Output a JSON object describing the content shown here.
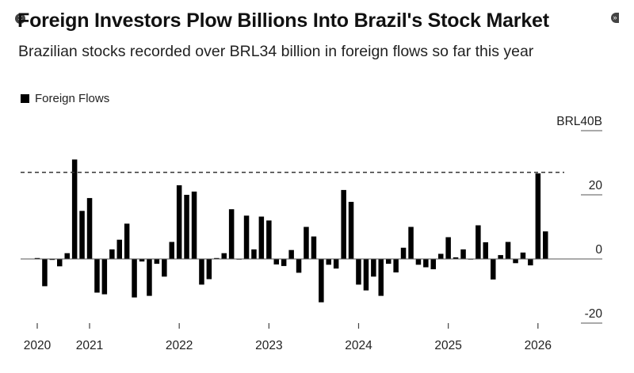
{
  "header": {
    "title": "Foreign Investors Plow Billions Into Brazil's Stock Market",
    "subtitle": "Brazilian stocks recorded over BRL34 billion in foreign flows so far this year",
    "close_icon": "close-icon",
    "expand_icon": "double-chevron-right-icon"
  },
  "chart_data": {
    "type": "bar",
    "title": "Foreign Investors Plow Billions Into Brazil's Stock Market",
    "subtitle": "Brazilian stocks recorded over BRL34 billion in foreign flows so far this year",
    "xlabel": "",
    "ylabel": "",
    "y_unit_label": "BRL40B",
    "ylim": [
      -20,
      40
    ],
    "yticks": [
      {
        "value": 40,
        "label": "BRL40B"
      },
      {
        "value": 20,
        "label": "20"
      },
      {
        "value": 0,
        "label": "0"
      },
      {
        "value": -20,
        "label": "-20"
      }
    ],
    "xticks": [
      {
        "index": 0,
        "label": "2020"
      },
      {
        "index": 7,
        "label": "2021"
      },
      {
        "index": 19,
        "label": "2022"
      },
      {
        "index": 31,
        "label": "2023"
      },
      {
        "index": 43,
        "label": "2024"
      },
      {
        "index": 55,
        "label": "2025"
      },
      {
        "index": 67,
        "label": "2026"
      }
    ],
    "reference_line": {
      "value": 27,
      "style": "dashed"
    },
    "legend": {
      "position": "top-left",
      "entries": [
        {
          "name": "Foreign Flows",
          "color": "#000000"
        }
      ]
    },
    "grid": false,
    "series": [
      {
        "name": "Foreign Flows",
        "color": "#000000",
        "values": [
          0.3,
          -8.5,
          -0.3,
          -2.3,
          1.8,
          31,
          15,
          19,
          -10.5,
          -11,
          3,
          6,
          11,
          -12,
          -0.8,
          -11.5,
          -1.5,
          -5.5,
          5.3,
          23,
          20,
          21,
          -8,
          -6.3,
          0.3,
          1.8,
          15.5,
          -0.1,
          13.5,
          3,
          13.2,
          12,
          -1.7,
          -2.2,
          2.8,
          -4.3,
          10,
          7,
          -13.5,
          -1.8,
          -3,
          21.5,
          17.8,
          -8,
          -9.8,
          -5.5,
          -11.5,
          -1.5,
          -4.2,
          3.5,
          10,
          -1.8,
          -2.6,
          -3.2,
          1.6,
          6.8,
          0.5,
          3,
          -0.1,
          10.5,
          5.2,
          -6.4,
          1.2,
          5.3,
          -1.3,
          2,
          -2,
          26.7,
          8.6
        ]
      }
    ]
  }
}
